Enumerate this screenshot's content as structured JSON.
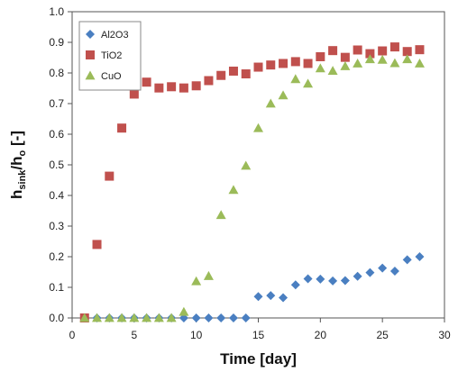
{
  "chart_data": {
    "type": "scatter",
    "xlabel": "Time [day]",
    "ylabel_main": "h",
    "ylabel_sub1": "sink",
    "ylabel_mid": "/h",
    "ylabel_sub2": "o",
    "ylabel_tail": " [-]",
    "xlim": [
      0,
      30
    ],
    "ylim": [
      0,
      1.0
    ],
    "xticks": [
      0,
      5,
      10,
      15,
      20,
      25,
      30
    ],
    "xtick_labels": [
      "0",
      "5",
      "10",
      "15",
      "20",
      "25",
      "30"
    ],
    "yticks": [
      0,
      0.1,
      0.2,
      0.3,
      0.4,
      0.5,
      0.6,
      0.7,
      0.8,
      0.9,
      1.0
    ],
    "ytick_labels": [
      "0.0",
      "0.1",
      "0.2",
      "0.3",
      "0.4",
      "0.5",
      "0.6",
      "0.7",
      "0.8",
      "0.9",
      "1.0"
    ],
    "grid": false,
    "legend_position": "top-left",
    "series": [
      {
        "name": "Al2O3",
        "marker": "diamond",
        "color": "#4a7fc1",
        "points": [
          [
            1,
            0
          ],
          [
            2,
            0
          ],
          [
            3,
            0
          ],
          [
            4,
            0
          ],
          [
            5,
            0
          ],
          [
            6,
            0
          ],
          [
            7,
            0
          ],
          [
            8,
            0
          ],
          [
            9,
            0
          ],
          [
            10,
            0
          ],
          [
            11,
            0
          ],
          [
            12,
            0
          ],
          [
            13,
            0
          ],
          [
            14,
            0
          ],
          [
            15,
            0.07
          ],
          [
            16,
            0.073
          ],
          [
            17,
            0.066
          ],
          [
            18,
            0.108
          ],
          [
            19,
            0.128
          ],
          [
            20,
            0.127
          ],
          [
            21,
            0.121
          ],
          [
            22,
            0.122
          ],
          [
            23,
            0.136
          ],
          [
            24,
            0.148
          ],
          [
            25,
            0.163
          ],
          [
            26,
            0.153
          ],
          [
            27,
            0.19
          ],
          [
            28,
            0.2
          ]
        ]
      },
      {
        "name": "TiO2",
        "marker": "square",
        "color": "#c0504d",
        "points": [
          [
            1,
            0
          ],
          [
            2,
            0.24
          ],
          [
            3,
            0.463
          ],
          [
            4,
            0.62
          ],
          [
            5,
            0.731
          ],
          [
            6,
            0.77
          ],
          [
            7,
            0.751
          ],
          [
            8,
            0.755
          ],
          [
            9,
            0.751
          ],
          [
            10,
            0.758
          ],
          [
            11,
            0.775
          ],
          [
            12,
            0.792
          ],
          [
            13,
            0.806
          ],
          [
            14,
            0.797
          ],
          [
            15,
            0.819
          ],
          [
            16,
            0.826
          ],
          [
            17,
            0.831
          ],
          [
            18,
            0.837
          ],
          [
            19,
            0.831
          ],
          [
            20,
            0.853
          ],
          [
            21,
            0.873
          ],
          [
            22,
            0.851
          ],
          [
            23,
            0.875
          ],
          [
            24,
            0.863
          ],
          [
            25,
            0.872
          ],
          [
            26,
            0.885
          ],
          [
            27,
            0.87
          ],
          [
            28,
            0.876
          ]
        ]
      },
      {
        "name": "CuO",
        "marker": "triangle",
        "color": "#9bbb59",
        "points": [
          [
            1,
            0
          ],
          [
            2,
            0
          ],
          [
            3,
            0
          ],
          [
            4,
            0
          ],
          [
            5,
            0
          ],
          [
            6,
            0
          ],
          [
            7,
            0
          ],
          [
            8,
            0
          ],
          [
            9,
            0.02
          ],
          [
            10,
            0.12
          ],
          [
            11,
            0.137
          ],
          [
            12,
            0.336
          ],
          [
            13,
            0.418
          ],
          [
            14,
            0.497
          ],
          [
            15,
            0.62
          ],
          [
            16,
            0.7
          ],
          [
            17,
            0.727
          ],
          [
            18,
            0.78
          ],
          [
            19,
            0.765
          ],
          [
            20,
            0.815
          ],
          [
            21,
            0.807
          ],
          [
            22,
            0.822
          ],
          [
            23,
            0.831
          ],
          [
            24,
            0.845
          ],
          [
            25,
            0.843
          ],
          [
            26,
            0.832
          ],
          [
            27,
            0.845
          ],
          [
            28,
            0.831
          ]
        ]
      }
    ]
  }
}
